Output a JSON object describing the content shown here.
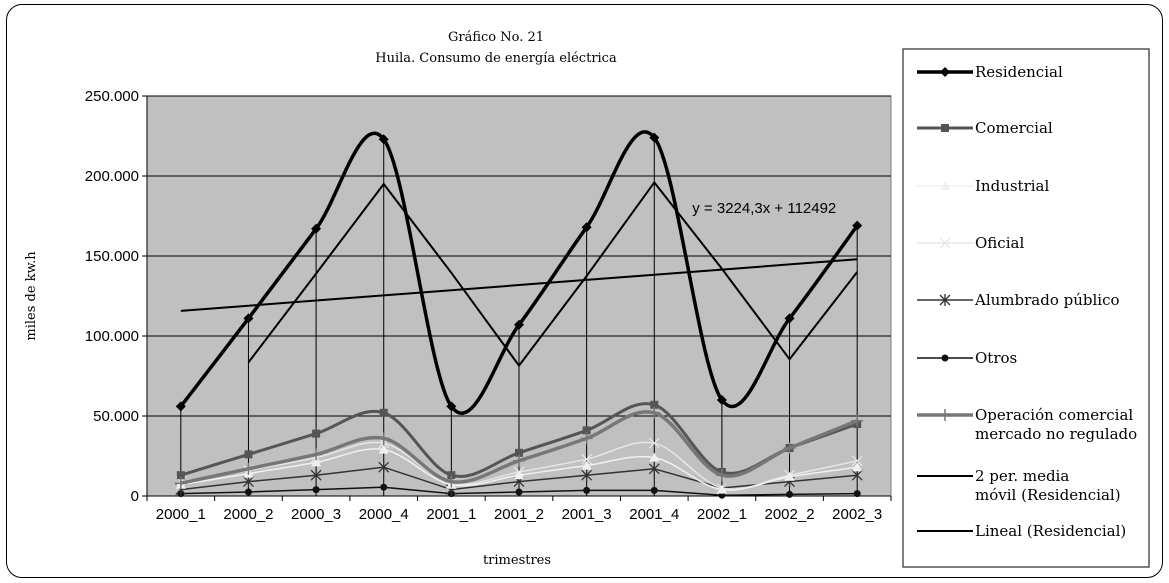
{
  "chart_data": {
    "type": "line",
    "title": "Gráfico No. 21",
    "subtitle": "Huila.  Consumo de energía eléctrica",
    "xlabel": "trimestres",
    "ylabel": "miles de kw.h",
    "ylim": [
      0,
      250000
    ],
    "yticks": [
      0,
      50000,
      100000,
      150000,
      200000,
      250000
    ],
    "ytick_labels": [
      "0",
      "50.000",
      "100.000",
      "150.000",
      "200.000",
      "250.000"
    ],
    "categories": [
      "2000_1",
      "2000_2",
      "2000_3",
      "2000_4",
      "2001_1",
      "2001_2",
      "2001_3",
      "2001_4",
      "2002_1",
      "2002_2",
      "2002_3"
    ],
    "grid": true,
    "legend_position": "right",
    "plot_background": "#c0c0c0",
    "series": [
      {
        "name": "Residencial",
        "values": [
          56000,
          111000,
          167000,
          223000,
          56000,
          107000,
          168000,
          224000,
          60000,
          111000,
          169000
        ],
        "color": "#000000",
        "marker": "diamond"
      },
      {
        "name": "Comercial",
        "values": [
          13000,
          26000,
          39000,
          52000,
          13000,
          27000,
          41000,
          57000,
          15000,
          30000,
          45000
        ],
        "color": "#555555",
        "marker": "square"
      },
      {
        "name": "Industrial",
        "values": [
          7000,
          14000,
          21000,
          29000,
          7000,
          13000,
          19000,
          24000,
          4000,
          12000,
          18000
        ],
        "color": "#f0f0f0",
        "marker": "triangle"
      },
      {
        "name": "Oficial",
        "values": [
          9000,
          16000,
          24000,
          33000,
          8000,
          15000,
          23000,
          33000,
          5000,
          13000,
          22000
        ],
        "color": "#e6e6e6",
        "marker": "x"
      },
      {
        "name": "Alumbrado público",
        "values": [
          4000,
          9000,
          13000,
          18000,
          4000,
          9000,
          13000,
          17000,
          5000,
          9000,
          13000
        ],
        "color": "#333333",
        "marker": "star"
      },
      {
        "name": "Otros",
        "values": [
          1500,
          2500,
          4000,
          5500,
          1500,
          2500,
          3500,
          3500,
          500,
          1000,
          1500
        ],
        "color": "#111111",
        "marker": "circle"
      },
      {
        "name": "Operación comercial mercado no regulado",
        "values": [
          8000,
          17000,
          26000,
          36000,
          9000,
          22000,
          36000,
          52000,
          13000,
          30000,
          47000
        ],
        "color": "#777777",
        "marker": "plus"
      },
      {
        "name": "2 per. media móvil (Residencial)",
        "values": [
          null,
          83500,
          139000,
          195000,
          139500,
          81500,
          137500,
          196000,
          142000,
          85500,
          140000
        ],
        "color": "#000000",
        "marker": "none"
      },
      {
        "name": "Lineal (Residencial)",
        "values": [
          115716,
          118940,
          122165,
          125389,
          128613,
          131838,
          135062,
          138286,
          141511,
          144735,
          147959
        ],
        "color": "#000000",
        "marker": "none"
      }
    ],
    "annotations": [
      {
        "text": "y = 3224,3x + 112492",
        "x": "2001_4",
        "y": 180000
      }
    ]
  }
}
